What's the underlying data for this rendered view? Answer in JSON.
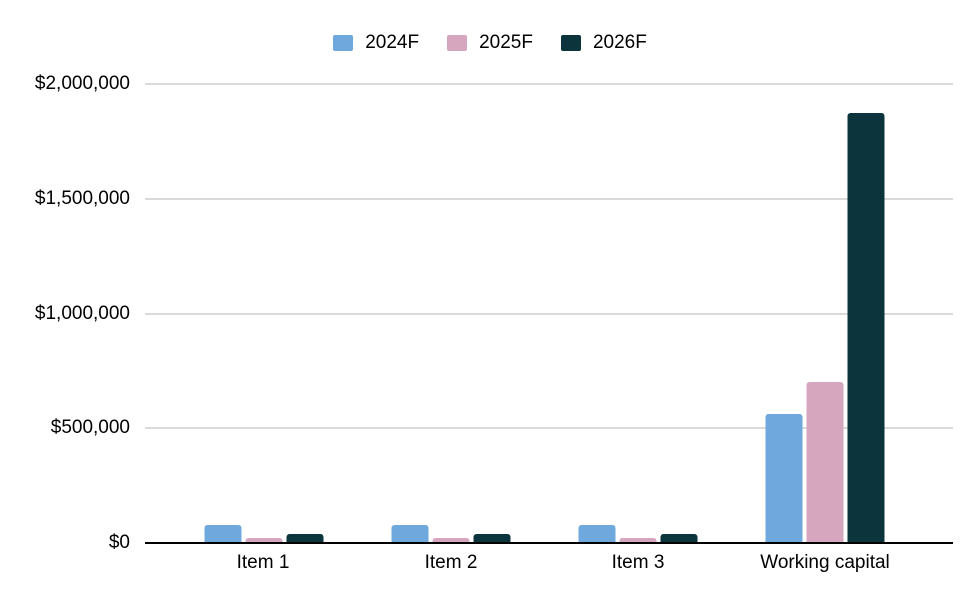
{
  "colors": {
    "background": "#FFFFFF",
    "gridline": "#D9D9D9",
    "axis": "#000000",
    "text": "#000000"
  },
  "chart_data": {
    "type": "bar",
    "title": "",
    "xlabel": "",
    "ylabel": "",
    "categories": [
      "Item 1",
      "Item 2",
      "Item 3",
      "Working capital"
    ],
    "series": [
      {
        "name": "2024F",
        "color": "#6FA8DC",
        "values": [
          80000,
          80000,
          80000,
          560000
        ]
      },
      {
        "name": "2025F",
        "color": "#D5A6BD",
        "values": [
          20000,
          20000,
          20000,
          700000
        ]
      },
      {
        "name": "2026F",
        "color": "#0C343D",
        "values": [
          40000,
          40000,
          40000,
          1875000
        ]
      }
    ],
    "ylim": [
      0,
      2000000
    ],
    "y_ticks": [
      "$2,000,000",
      "$1,500,000",
      "$1,000,000",
      "$500,000",
      "$0"
    ],
    "grid": "horizontal",
    "legend_position": "top",
    "value_format": "$#,##0"
  }
}
